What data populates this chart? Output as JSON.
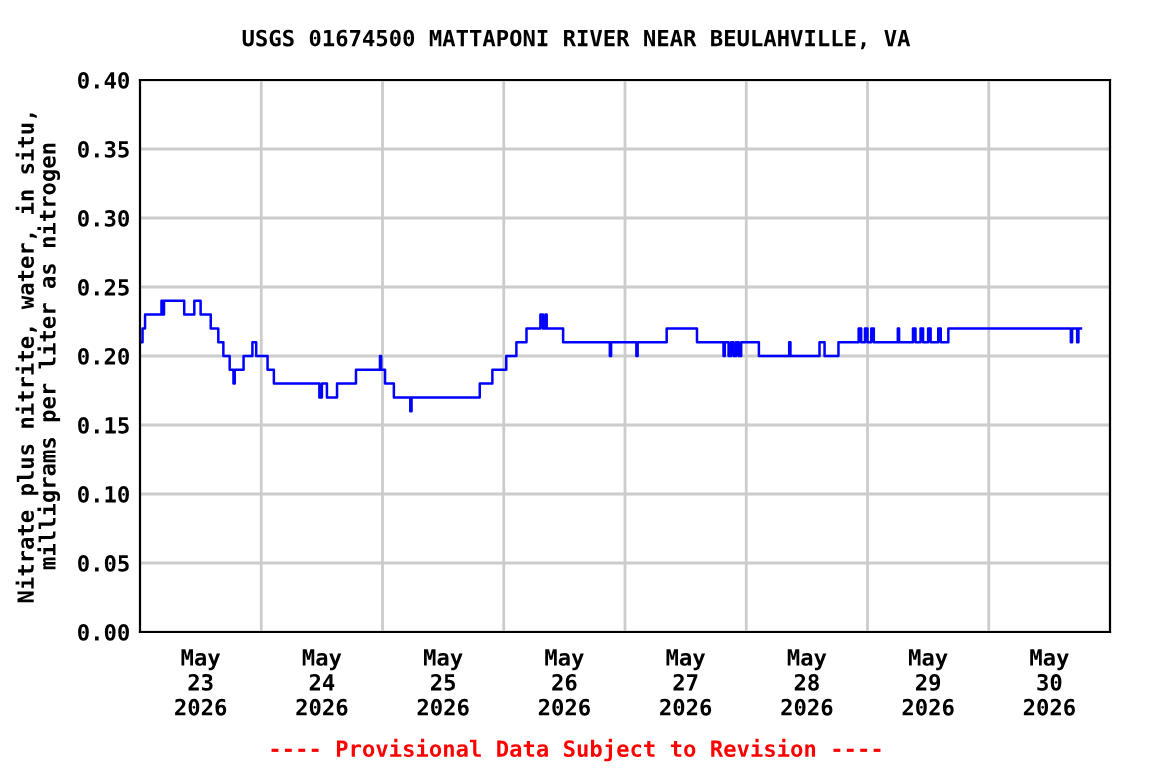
{
  "chart_data": {
    "type": "step",
    "title": "USGS 01674500 MATTAPONI RIVER NEAR BEULAHVILLE, VA",
    "ylabel": "Nitrate plus nitrite, water, in situ,\nmilligrams per liter as nitrogen",
    "annotations": [
      "---- Provisional Data Subject to Revision ----"
    ],
    "xlim": [
      "2026-05-23",
      "2026-05-31"
    ],
    "xticks": [
      {
        "value": "2026-05-23T12:00",
        "label": "May\n23\n2026"
      },
      {
        "value": "2026-05-24T12:00",
        "label": "May\n24\n2026"
      },
      {
        "value": "2026-05-25T12:00",
        "label": "May\n25\n2026"
      },
      {
        "value": "2026-05-26T12:00",
        "label": "May\n26\n2026"
      },
      {
        "value": "2026-05-27T12:00",
        "label": "May\n27\n2026"
      },
      {
        "value": "2026-05-28T12:00",
        "label": "May\n28\n2026"
      },
      {
        "value": "2026-05-29T12:00",
        "label": "May\n29\n2026"
      },
      {
        "value": "2026-05-30T12:00",
        "label": "May\n30\n2026"
      },
      {
        "value": "2026-05-24",
        "label": null
      },
      {
        "value": "2026-05-25",
        "label": null
      },
      {
        "value": "2026-05-26",
        "label": null
      },
      {
        "value": "2026-05-27",
        "label": null
      },
      {
        "value": "2026-05-28",
        "label": null
      },
      {
        "value": "2026-05-29",
        "label": null
      },
      {
        "value": "2026-05-30",
        "label": null
      }
    ],
    "ylim": [
      0,
      0.4
    ],
    "yticks": [
      {
        "value": 0,
        "label": "0.00"
      },
      {
        "value": 0.05,
        "label": "0.05"
      },
      {
        "value": 0.1,
        "label": "0.10"
      },
      {
        "value": 0.15,
        "label": "0.15"
      },
      {
        "value": 0.2,
        "label": "0.20"
      },
      {
        "value": 0.25,
        "label": "0.25"
      },
      {
        "value": 0.3,
        "label": "0.30"
      },
      {
        "value": 0.35,
        "label": "0.35"
      },
      {
        "value": 0.4,
        "label": "0.40"
      }
    ],
    "grid": true,
    "legend": false,
    "line_style": "solid",
    "series": [
      {
        "color": "#0000ff",
        "x": [
          "2026-05-23T00:00",
          "2026-05-23T00:30",
          "2026-05-23T01:00",
          "2026-05-23T04:15",
          "2026-05-23T04:30",
          "2026-05-23T04:45",
          "2026-05-23T08:45",
          "2026-05-23T10:45",
          "2026-05-23T12:00",
          "2026-05-23T14:00",
          "2026-05-23T15:30",
          "2026-05-23T16:30",
          "2026-05-23T17:45",
          "2026-05-23T18:30",
          "2026-05-23T18:45",
          "2026-05-23T20:30",
          "2026-05-23T22:15",
          "2026-05-23T23:00",
          "2026-05-24T01:15",
          "2026-05-24T02:30",
          "2026-05-24T11:30",
          "2026-05-24T12:00",
          "2026-05-24T13:00",
          "2026-05-24T15:00",
          "2026-05-24T18:45",
          "2026-05-24T23:30",
          "2026-05-24T23:45",
          "2026-05-25T00:30",
          "2026-05-25T02:15",
          "2026-05-25T05:30",
          "2026-05-25T05:45",
          "2026-05-25T19:15",
          "2026-05-25T21:45",
          "2026-05-26T00:30",
          "2026-05-26T02:30",
          "2026-05-26T04:30",
          "2026-05-26T07:15",
          "2026-05-26T07:45",
          "2026-05-26T08:15",
          "2026-05-26T08:30",
          "2026-05-26T11:45",
          "2026-05-26T21:00",
          "2026-05-26T21:15",
          "2026-05-27T02:15",
          "2026-05-27T02:30",
          "2026-05-27T08:15",
          "2026-05-27T14:15",
          "2026-05-27T19:30",
          "2026-05-27T19:45",
          "2026-05-27T20:30",
          "2026-05-27T21:00",
          "2026-05-27T21:30",
          "2026-05-27T22:00",
          "2026-05-27T22:30",
          "2026-05-27T23:00",
          "2026-05-28T01:30",
          "2026-05-28T02:30",
          "2026-05-28T08:30",
          "2026-05-28T08:45",
          "2026-05-28T14:30",
          "2026-05-28T15:30",
          "2026-05-28T18:15",
          "2026-05-28T22:15",
          "2026-05-28T22:45",
          "2026-05-28T23:30",
          "2026-05-29T00:00",
          "2026-05-29T00:45",
          "2026-05-29T01:15",
          "2026-05-29T06:00",
          "2026-05-29T06:15",
          "2026-05-29T09:00",
          "2026-05-29T09:30",
          "2026-05-29T10:30",
          "2026-05-29T11:00",
          "2026-05-29T12:00",
          "2026-05-29T12:30",
          "2026-05-29T14:00",
          "2026-05-29T14:30",
          "2026-05-29T16:00",
          "2026-05-30T16:15",
          "2026-05-30T16:30",
          "2026-05-30T17:30",
          "2026-05-30T17:45",
          "2026-05-30T18:15"
        ],
        "values": [
          0.21,
          0.22,
          0.23,
          0.24,
          0.23,
          0.24,
          0.23,
          0.24,
          0.23,
          0.22,
          0.21,
          0.2,
          0.19,
          0.18,
          0.19,
          0.2,
          0.21,
          0.2,
          0.19,
          0.18,
          0.17,
          0.18,
          0.17,
          0.18,
          0.19,
          0.2,
          0.19,
          0.18,
          0.17,
          0.16,
          0.17,
          0.18,
          0.19,
          0.2,
          0.21,
          0.22,
          0.23,
          0.22,
          0.23,
          0.22,
          0.21,
          0.2,
          0.21,
          0.2,
          0.21,
          0.22,
          0.21,
          0.2,
          0.21,
          0.2,
          0.21,
          0.2,
          0.21,
          0.2,
          0.21,
          0.21,
          0.2,
          0.21,
          0.2,
          0.21,
          0.2,
          0.21,
          0.22,
          0.21,
          0.22,
          0.21,
          0.22,
          0.21,
          0.22,
          0.21,
          0.22,
          0.21,
          0.22,
          0.21,
          0.22,
          0.21,
          0.22,
          0.21,
          0.22,
          0.21,
          0.22,
          0.21,
          0.22,
          0.22
        ]
      }
    ]
  }
}
